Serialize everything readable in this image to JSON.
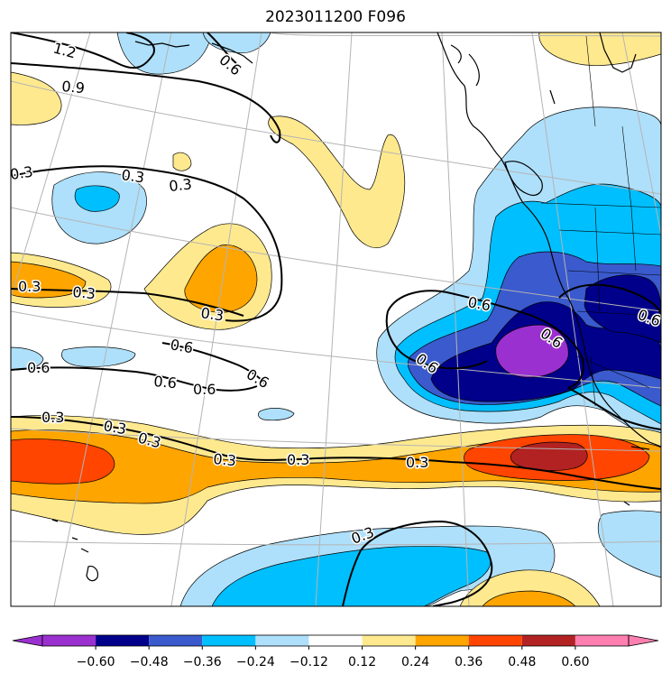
{
  "title": "2023011200 F096",
  "colors": {
    "neg_060_048": "#9b30d0",
    "neg_048_036": "#00008b",
    "neg_036_024": "#3a5acd",
    "neg_024_012": "#00bfff",
    "neg_012_000": "#aee0fb",
    "pos_012_024": "#ffe98f",
    "pos_024_036": "#ffa500",
    "pos_036_048": "#ff4500",
    "pos_048_060": "#b22222",
    "pos_over_060": "#ff80b0",
    "neg_under_060": "#9b30d0",
    "land_outline": "#000000",
    "graticule": "#b4b4b4"
  },
  "colorbar": {
    "ticks": [
      "−0.60",
      "−0.48",
      "−0.36",
      "−0.24",
      "−0.12",
      "0.12",
      "0.24",
      "0.36",
      "0.48",
      "0.60"
    ]
  },
  "contour_labels": [
    {
      "id": "c1",
      "text": "1.2"
    },
    {
      "id": "c2",
      "text": "0.9"
    },
    {
      "id": "c3",
      "text": "0.6"
    },
    {
      "id": "c4",
      "text": "0.3"
    },
    {
      "id": "c5",
      "text": "0.3"
    },
    {
      "id": "c6",
      "text": "0.3"
    },
    {
      "id": "c7",
      "text": "0.3"
    },
    {
      "id": "c8",
      "text": "0.3"
    },
    {
      "id": "c9",
      "text": "0.3"
    },
    {
      "id": "c10",
      "text": "0.6"
    },
    {
      "id": "c11",
      "text": "0.6"
    },
    {
      "id": "c12",
      "text": "0.6"
    },
    {
      "id": "c13",
      "text": "0.6"
    },
    {
      "id": "c14",
      "text": "0.6"
    },
    {
      "id": "c15",
      "text": "0.3"
    },
    {
      "id": "c16",
      "text": "0.3"
    },
    {
      "id": "c17",
      "text": "0.3"
    },
    {
      "id": "c18",
      "text": "0.3"
    },
    {
      "id": "c19",
      "text": "0.3"
    },
    {
      "id": "c20",
      "text": "0.3"
    },
    {
      "id": "c21",
      "text": "0.3"
    },
    {
      "id": "c22",
      "text": "0.6"
    },
    {
      "id": "c23",
      "text": "0.6"
    },
    {
      "id": "c24",
      "text": "0.6"
    },
    {
      "id": "c25",
      "text": "0.6"
    }
  ]
}
